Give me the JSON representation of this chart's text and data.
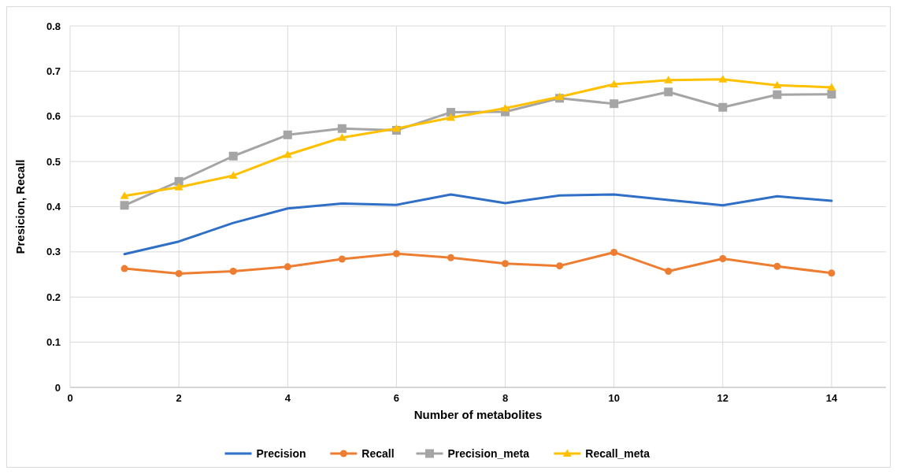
{
  "chart_data": {
    "type": "line",
    "xlabel": "Number of metabolites",
    "ylabel": "Presicion, Recall",
    "x": [
      1,
      2,
      3,
      4,
      5,
      6,
      7,
      8,
      9,
      10,
      11,
      12,
      13,
      14
    ],
    "xlim": [
      0,
      15
    ],
    "xticks": [
      0,
      2,
      4,
      6,
      8,
      10,
      12,
      14
    ],
    "ylim": [
      0,
      0.8
    ],
    "yticks": [
      0,
      0.1,
      0.2,
      0.3,
      0.4,
      0.5,
      0.6,
      0.7,
      0.8
    ],
    "grid": true,
    "legend": "bottom",
    "line_style": "solid",
    "series": [
      {
        "name": "Precision",
        "color": "#2f6fc6",
        "marker": "none",
        "values": [
          0.295,
          0.323,
          0.364,
          0.396,
          0.407,
          0.404,
          0.427,
          0.408,
          0.425,
          0.427,
          0.415,
          0.403,
          0.423,
          0.413
        ]
      },
      {
        "name": "Recall",
        "color": "#ed7d31",
        "marker": "circle",
        "values": [
          0.263,
          0.252,
          0.257,
          0.267,
          0.284,
          0.296,
          0.287,
          0.274,
          0.269,
          0.299,
          0.257,
          0.285,
          0.268,
          0.253
        ]
      },
      {
        "name": "Precision_meta",
        "color": "#a5a5a5",
        "marker": "square",
        "values": [
          0.403,
          0.456,
          0.512,
          0.559,
          0.573,
          0.569,
          0.609,
          0.61,
          0.64,
          0.628,
          0.654,
          0.62,
          0.648,
          0.649
        ]
      },
      {
        "name": "Recall_meta",
        "color": "#ffc000",
        "marker": "triangle",
        "values": [
          0.424,
          0.443,
          0.469,
          0.515,
          0.553,
          0.573,
          0.597,
          0.618,
          0.643,
          0.671,
          0.68,
          0.682,
          0.669,
          0.664
        ]
      }
    ]
  }
}
